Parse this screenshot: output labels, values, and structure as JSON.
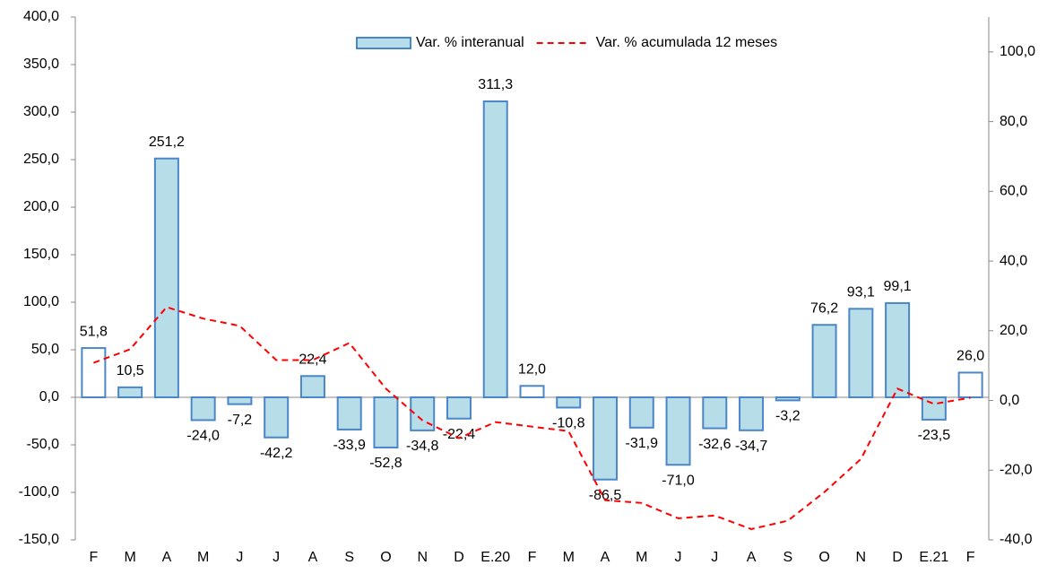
{
  "chart_data": {
    "type": "bar-line",
    "categories": [
      "F",
      "M",
      "A",
      "M",
      "J",
      "J",
      "A",
      "S",
      "O",
      "N",
      "D",
      "E.20",
      "F",
      "M",
      "A",
      "M",
      "J",
      "J",
      "A",
      "S",
      "O",
      "N",
      "D",
      "E.21",
      "F"
    ],
    "series": [
      {
        "name": "Var. % interanual",
        "type": "bar",
        "color": "#b7dde8",
        "edge_color": "#4a86c8",
        "colors": [
          "#ffffff",
          "#b7dde8",
          "#b7dde8",
          "#b7dde8",
          "#b7dde8",
          "#b7dde8",
          "#b7dde8",
          "#b7dde8",
          "#b7dde8",
          "#b7dde8",
          "#b7dde8",
          "#b7dde8",
          "#ffffff",
          "#b7dde8",
          "#b7dde8",
          "#b7dde8",
          "#b7dde8",
          "#b7dde8",
          "#b7dde8",
          "#b7dde8",
          "#b7dde8",
          "#b7dde8",
          "#b7dde8",
          "#b7dde8",
          "#ffffff"
        ],
        "values": [
          51.8,
          10.5,
          251.2,
          -24.0,
          -7.2,
          -42.2,
          22.4,
          -33.9,
          -52.8,
          -34.8,
          -22.4,
          311.3,
          12.0,
          -10.8,
          -86.5,
          -31.9,
          -71.0,
          -32.6,
          -34.7,
          -3.2,
          76.2,
          93.1,
          99.1,
          -23.5,
          26.0
        ],
        "value_labels": [
          "51,8",
          "10,5",
          "251,2",
          "-24,0",
          "-7,2",
          "-42,2",
          "22,4",
          "-33,9",
          "-52,8",
          "-34,8",
          "-22,4",
          "311,3",
          "12,0",
          "-10,8",
          "-86,5",
          "-31,9",
          "-71,0",
          "-32,6",
          "-34,7",
          "-3,2",
          "76,2",
          "93,1",
          "99,1",
          "-23,5",
          "26,0"
        ]
      },
      {
        "name": "Var. % acumulada 12 meses",
        "type": "line",
        "axis": "y2",
        "color": "#ff0000",
        "dashed": true,
        "values": [
          10.8,
          14.7,
          26.8,
          23.5,
          21.4,
          11.6,
          11.6,
          16.5,
          3.4,
          -5.7,
          -10.8,
          -6.2,
          -7.5,
          -8.8,
          -28.6,
          -29.4,
          -33.8,
          -33.0,
          -36.9,
          -34.5,
          -26.3,
          -16.8,
          3.4,
          -1.0,
          0.8
        ]
      }
    ],
    "ylim": [
      -150,
      400
    ],
    "yticks": [
      {
        "value": -150,
        "label": "-150,0"
      },
      {
        "value": -100,
        "label": "-100,0"
      },
      {
        "value": -50,
        "label": "-50,0"
      },
      {
        "value": 0,
        "label": "0,0"
      },
      {
        "value": 50,
        "label": "50,0"
      },
      {
        "value": 100,
        "label": "100,0"
      },
      {
        "value": 150,
        "label": "150,0"
      },
      {
        "value": 200,
        "label": "200,0"
      },
      {
        "value": 250,
        "label": "250,0"
      },
      {
        "value": 300,
        "label": "300,0"
      },
      {
        "value": 350,
        "label": "350,0"
      },
      {
        "value": 400,
        "label": "400,0"
      }
    ],
    "y2lim": [
      -40,
      110
    ],
    "y2ticks": [
      {
        "value": -40,
        "label": "-40,0"
      },
      {
        "value": -20,
        "label": "-20,0"
      },
      {
        "value": 0,
        "label": "0,0"
      },
      {
        "value": 20,
        "label": "20,0"
      },
      {
        "value": 40,
        "label": "40,0"
      },
      {
        "value": 60,
        "label": "60,0"
      },
      {
        "value": 80,
        "label": "80,0"
      },
      {
        "value": 100,
        "label": "100,0"
      }
    ],
    "legend": "top",
    "grid": false
  }
}
